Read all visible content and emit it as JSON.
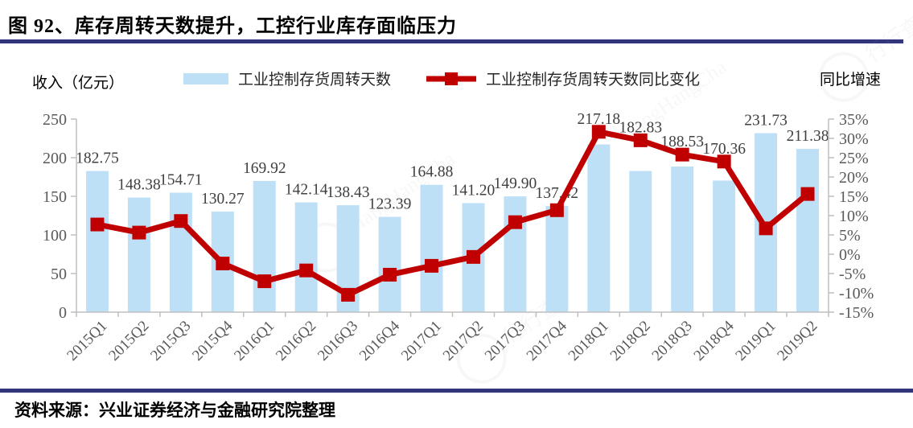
{
  "header": {
    "title": "图 92、库存周转天数提升，工控行业库存面临压力"
  },
  "chart": {
    "left_axis_title": "收入（亿元）",
    "right_axis_title": "同比增速",
    "legend": [
      {
        "label": "工业控制存货周转天数",
        "type": "bar",
        "color": "#bee0f7"
      },
      {
        "label": "工业控制存货周转天数同比变化",
        "type": "line",
        "color": "#c00000"
      }
    ]
  },
  "chart_data": {
    "type": "bar",
    "title": "图 92、库存周转天数提升，工控行业库存面临压力",
    "categories": [
      "2015Q1",
      "2015Q2",
      "2015Q3",
      "2015Q4",
      "2016Q1",
      "2016Q2",
      "2016Q3",
      "2016Q4",
      "2017Q1",
      "2017Q2",
      "2017Q3",
      "2017Q4",
      "2018Q1",
      "2018Q2",
      "2018Q3",
      "2018Q4",
      "2019Q1",
      "2019Q2"
    ],
    "series": [
      {
        "name": "工业控制存货周转天数",
        "type": "bar",
        "axis": "left",
        "color": "#bee0f7",
        "values": [
          182.75,
          148.38,
          154.71,
          130.27,
          169.92,
          142.14,
          138.43,
          123.39,
          164.88,
          141.2,
          149.9,
          137.42,
          217.18,
          182.83,
          188.53,
          170.36,
          231.73,
          211.38
        ],
        "data_labels": [
          "182.75",
          "148.38",
          "154.71",
          "130.27",
          "169.92",
          "142.14",
          "138.43",
          "123.39",
          "164.88",
          "141.20",
          "149.90",
          "137.42",
          "217.18",
          "182.83",
          "188.53",
          "170.36",
          "231.73",
          "211.38"
        ]
      },
      {
        "name": "工业控制存货周转天数同比变化",
        "type": "line",
        "axis": "right",
        "color": "#c00000",
        "values_pct": [
          7.7,
          5.6,
          8.6,
          -2.4,
          -7.0,
          -4.2,
          -10.5,
          -5.3,
          -3.0,
          -0.7,
          8.3,
          11.4,
          31.7,
          29.5,
          25.8,
          24.0,
          6.7,
          15.6
        ]
      }
    ],
    "left_axis": {
      "min": 0,
      "max": 250,
      "step": 50,
      "ticks": [
        "0",
        "50",
        "100",
        "150",
        "200",
        "250"
      ]
    },
    "right_axis": {
      "min": -15,
      "max": 35,
      "step": 5,
      "ticks": [
        "-15%",
        "-10%",
        "-5%",
        "0%",
        "5%",
        "10%",
        "15%",
        "20%",
        "25%",
        "30%",
        "35%"
      ]
    },
    "xlabel": "",
    "ylabel_left": "收入（亿元）",
    "ylabel_right": "同比增速",
    "grid": false,
    "legend_position": "top"
  },
  "source": {
    "text": "资料来源：兴业证券经济与金融研究院整理"
  },
  "watermark": {
    "text": "行行查",
    "subtext": "HangHangCha"
  },
  "colors": {
    "bar": "#bee0f7",
    "line": "#c00000",
    "rule": "#31357b",
    "axis_line": "#bfbfbf",
    "axis_text": "#595959",
    "label_text": "#404040"
  }
}
